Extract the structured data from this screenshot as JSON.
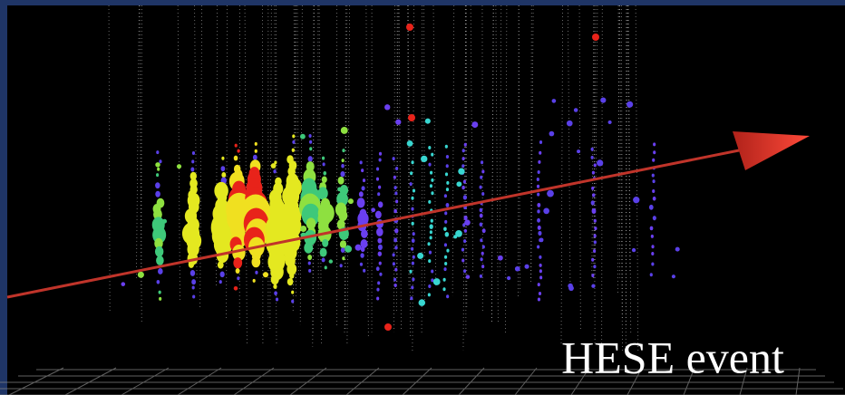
{
  "caption": "HESE event"
}
